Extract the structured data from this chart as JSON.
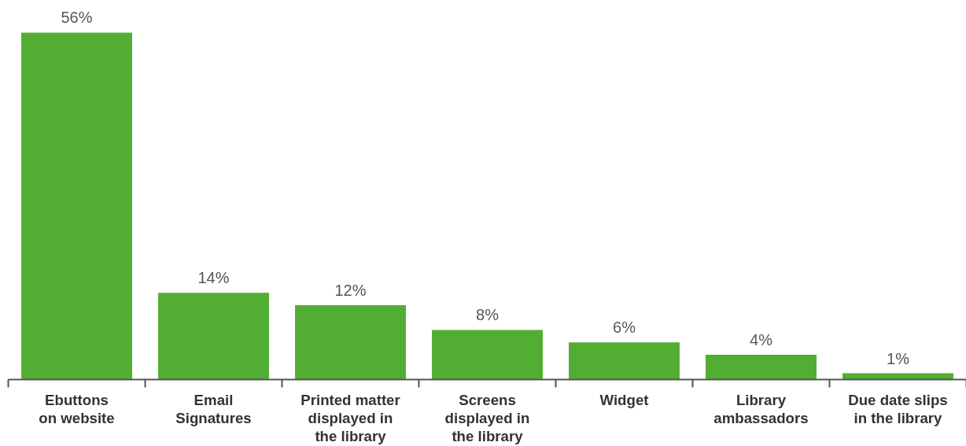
{
  "chart_data": {
    "type": "bar",
    "categories": [
      "Ebuttons\non website",
      "Email\nSignatures",
      "Printed matter\ndisplayed in\nthe library",
      "Screens\ndisplayed in\nthe library",
      "Widget",
      "Library\nambassadors",
      "Due date slips\nin the library"
    ],
    "values": [
      56,
      14,
      12,
      8,
      6,
      4,
      1
    ],
    "value_labels": [
      "56%",
      "14%",
      "12%",
      "8%",
      "6%",
      "4%",
      "1%"
    ],
    "color": "#52ae32",
    "grid": false,
    "tick_labels": "x"
  }
}
